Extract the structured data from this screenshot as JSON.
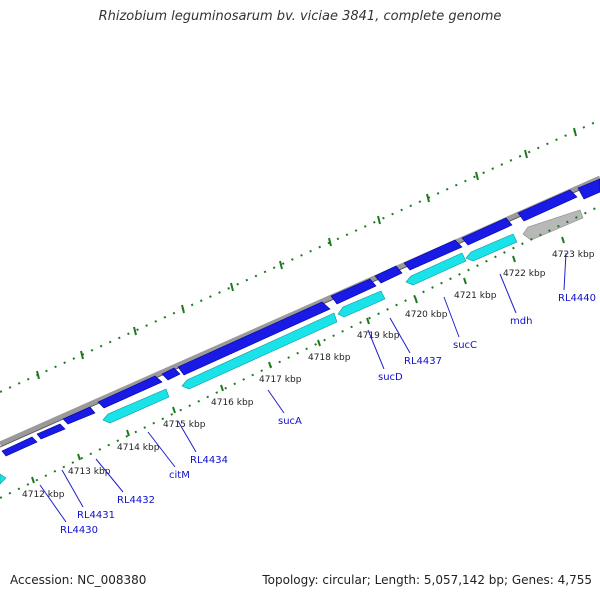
{
  "title": "Rhizobium leguminosarum bv. viciae 3841, complete genome",
  "footer": {
    "accession": "Accession: NC_008380",
    "summary": "Topology: circular; Length: 5,057,142 bp; Genes: 4,755"
  },
  "colors": {
    "backbone": "#9a9a9a",
    "forward_gene": "#1a1ae6",
    "reverse_gene": "#19e3e8",
    "pseudo_gene": "#b8b8b8",
    "tick": "#1f7a1f",
    "label_line": "#2020cc"
  },
  "kbp_labels": [
    "4712 kbp",
    "4713 kbp",
    "4714 kbp",
    "4715 kbp",
    "4716 kbp",
    "4717 kbp",
    "4718 kbp",
    "4719 kbp",
    "4720 kbp",
    "4721 kbp",
    "4722 kbp",
    "4723 kbp"
  ],
  "gene_labels": [
    "RL4430",
    "RL4431",
    "RL4432",
    "citM",
    "RL4434",
    "sucA",
    "sucD",
    "RL4437",
    "sucC",
    "mdh",
    "RL4440"
  ]
}
